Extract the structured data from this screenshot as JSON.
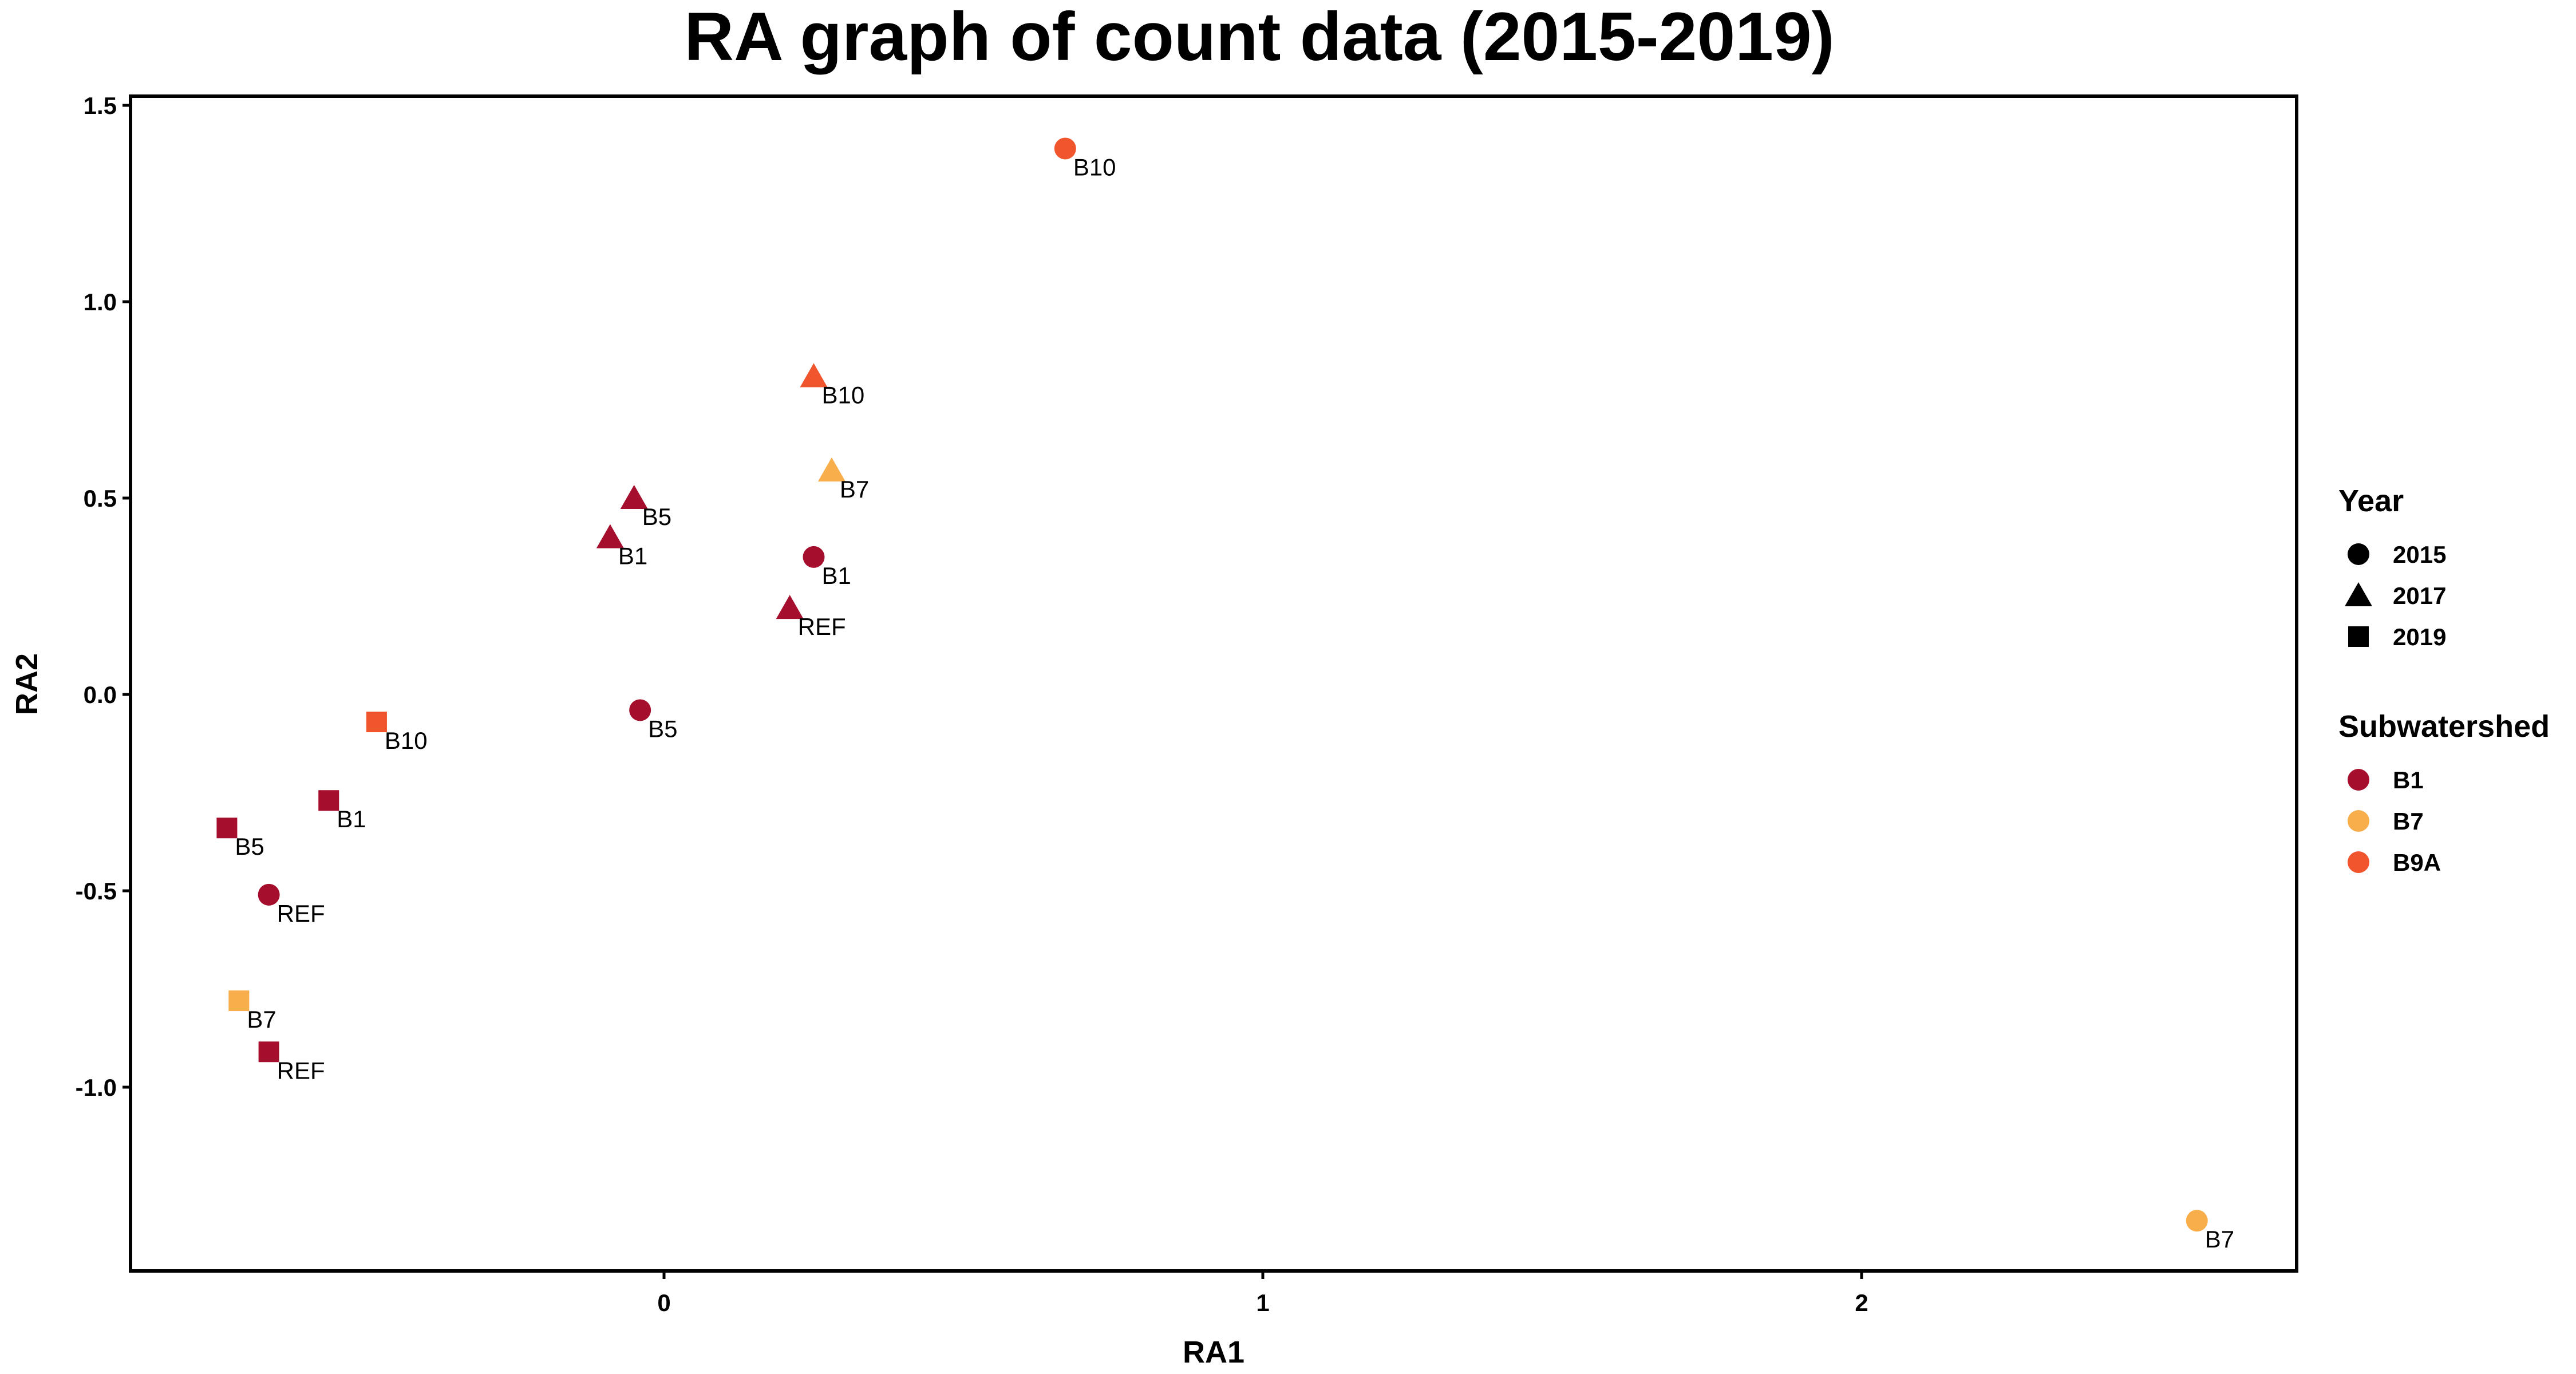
{
  "chart_data": {
    "type": "scatter",
    "title": "RA graph of count data (2015-2019)",
    "xlabel": "RA1",
    "ylabel": "RA2",
    "xlim": [
      -0.89,
      2.73
    ],
    "ylim": [
      -1.47,
      1.52
    ],
    "x_ticks": [
      0,
      1,
      2
    ],
    "x_tick_labels": [
      "0",
      "1",
      "2"
    ],
    "y_ticks": [
      1.5,
      1.0,
      0.5,
      0.0,
      -0.5,
      -1.0
    ],
    "y_tick_labels": [
      "1.5",
      "1.0",
      "0.5",
      "0.0",
      "-0.5",
      "-1.0"
    ],
    "grid": false,
    "legend_position": "right",
    "legends": {
      "year": {
        "title": "Year",
        "items": [
          {
            "label": "2015",
            "shape": "circle"
          },
          {
            "label": "2017",
            "shape": "triangle"
          },
          {
            "label": "2019",
            "shape": "square"
          }
        ]
      },
      "subwatershed": {
        "title": "Subwatershed",
        "items": [
          {
            "label": "B1",
            "color": "#a50f2d"
          },
          {
            "label": "B7",
            "color": "#f9ae4c"
          },
          {
            "label": "B9A",
            "color": "#f0552d"
          }
        ]
      }
    },
    "points": [
      {
        "x": 0.67,
        "y": 1.39,
        "label": "B10",
        "year": "2015",
        "subwatershed": "B9A"
      },
      {
        "x": 0.25,
        "y": 0.81,
        "label": "B10",
        "year": "2017",
        "subwatershed": "B9A"
      },
      {
        "x": 0.28,
        "y": 0.57,
        "label": "B7",
        "year": "2017",
        "subwatershed": "B7"
      },
      {
        "x": -0.05,
        "y": 0.5,
        "label": "B5",
        "year": "2017",
        "subwatershed": "B1"
      },
      {
        "x": -0.09,
        "y": 0.4,
        "label": "B1",
        "year": "2017",
        "subwatershed": "B1"
      },
      {
        "x": 0.25,
        "y": 0.35,
        "label": "B1",
        "year": "2015",
        "subwatershed": "B1"
      },
      {
        "x": 0.21,
        "y": 0.22,
        "label": "REF",
        "year": "2017",
        "subwatershed": "B1"
      },
      {
        "x": -0.04,
        "y": -0.04,
        "label": "B5",
        "year": "2015",
        "subwatershed": "B1"
      },
      {
        "x": -0.48,
        "y": -0.07,
        "label": "B10",
        "year": "2019",
        "subwatershed": "B9A"
      },
      {
        "x": -0.56,
        "y": -0.27,
        "label": "B1",
        "year": "2019",
        "subwatershed": "B1"
      },
      {
        "x": -0.73,
        "y": -0.34,
        "label": "B5",
        "year": "2019",
        "subwatershed": "B1"
      },
      {
        "x": -0.66,
        "y": -0.51,
        "label": "REF",
        "year": "2015",
        "subwatershed": "B1"
      },
      {
        "x": -0.71,
        "y": -0.78,
        "label": "B7",
        "year": "2019",
        "subwatershed": "B7"
      },
      {
        "x": -0.66,
        "y": -0.91,
        "label": "REF",
        "year": "2019",
        "subwatershed": "B1"
      },
      {
        "x": 2.56,
        "y": -1.34,
        "label": "B7",
        "year": "2015",
        "subwatershed": "B7"
      }
    ]
  }
}
